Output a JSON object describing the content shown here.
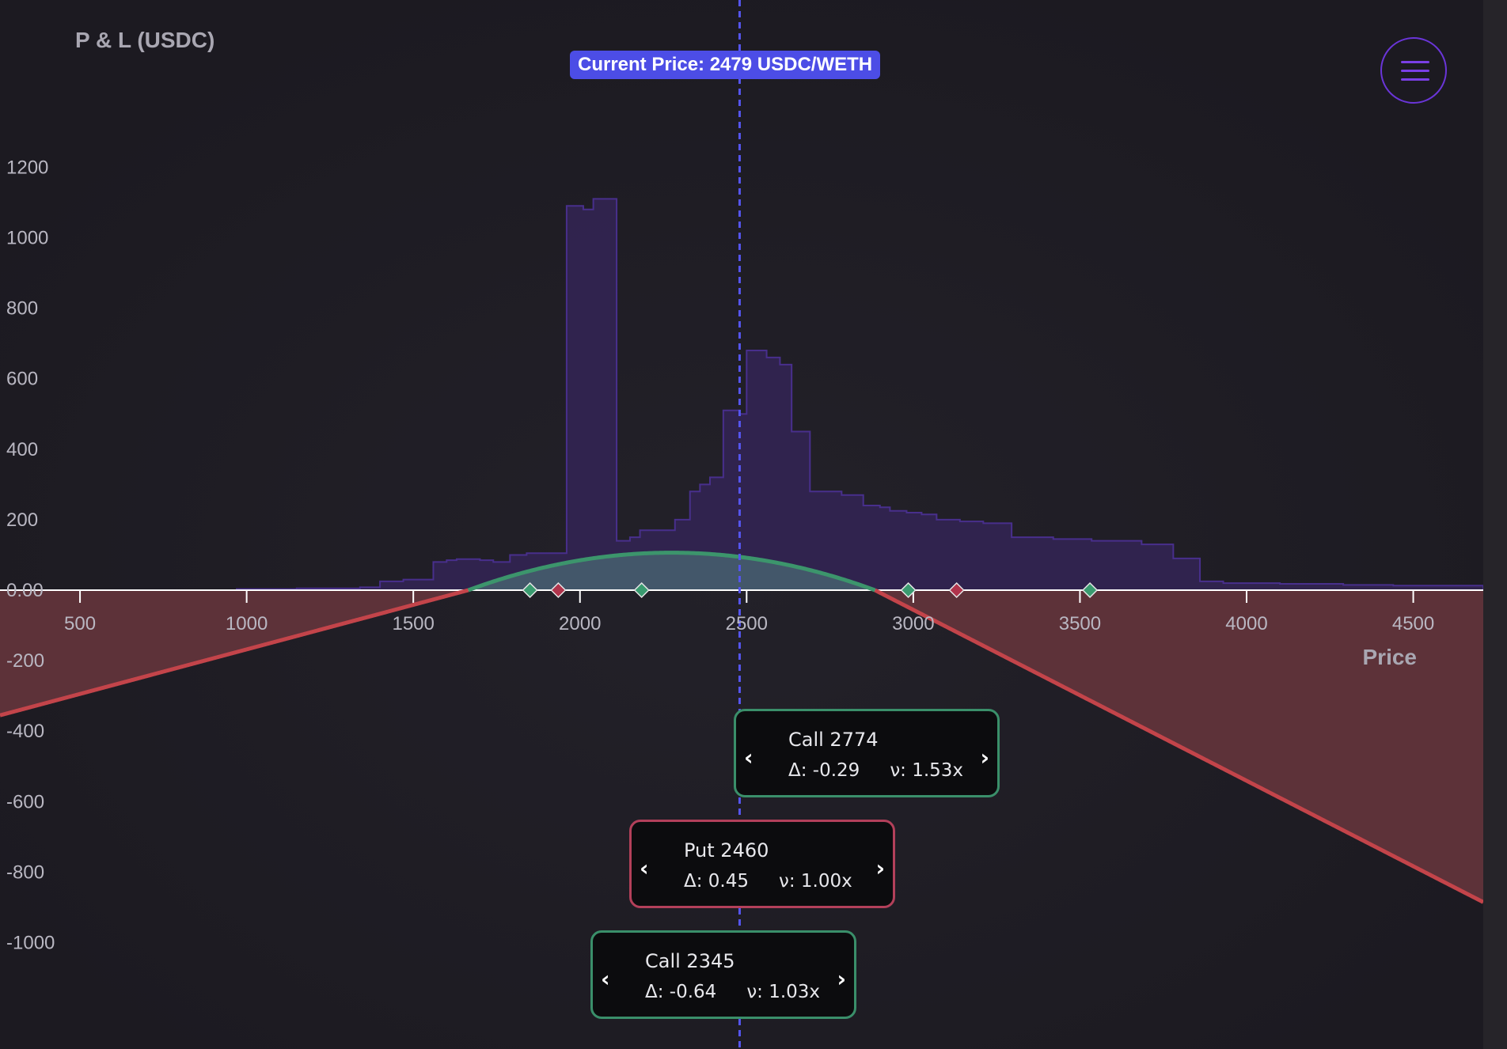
{
  "chart_data": {
    "type": "area",
    "title": "P & L (USDC)",
    "xlabel": "Price",
    "ylabel": "P & L (USDC)",
    "xlim": [
      260,
      4710
    ],
    "ylim": [
      -1000,
      1200
    ],
    "x_ticks": [
      500,
      1000,
      1500,
      2000,
      2500,
      3000,
      3500,
      4000,
      4500
    ],
    "y_ticks": [
      1200,
      1000,
      800,
      600,
      400,
      200,
      0,
      -200,
      -400,
      -600,
      -800,
      -1000
    ],
    "y_tick_labels": [
      "1200",
      "1000",
      "800",
      "600",
      "400",
      "200",
      "0.00",
      "-200",
      "-400",
      "-600",
      "-800",
      "-1000"
    ],
    "current_price": 2479,
    "current_price_label": "Current Price: 2479 USDC/WETH",
    "liquidity_histogram": {
      "steps": [
        [
          260,
          0
        ],
        [
          970,
          3
        ],
        [
          1150,
          5
        ],
        [
          1340,
          8
        ],
        [
          1400,
          25
        ],
        [
          1470,
          30
        ],
        [
          1560,
          80
        ],
        [
          1600,
          85
        ],
        [
          1630,
          88
        ],
        [
          1700,
          85
        ],
        [
          1740,
          80
        ],
        [
          1790,
          100
        ],
        [
          1840,
          105
        ],
        [
          1960,
          1090
        ],
        [
          2010,
          1080
        ],
        [
          2040,
          1110
        ],
        [
          2110,
          140
        ],
        [
          2150,
          150
        ],
        [
          2180,
          170
        ],
        [
          2285,
          200
        ],
        [
          2330,
          280
        ],
        [
          2360,
          300
        ],
        [
          2390,
          320
        ],
        [
          2430,
          510
        ],
        [
          2480,
          500
        ],
        [
          2500,
          680
        ],
        [
          2560,
          660
        ],
        [
          2600,
          640
        ],
        [
          2635,
          450
        ],
        [
          2690,
          280
        ],
        [
          2785,
          270
        ],
        [
          2850,
          240
        ],
        [
          2900,
          235
        ],
        [
          2930,
          225
        ],
        [
          2980,
          220
        ],
        [
          3025,
          215
        ],
        [
          3070,
          200
        ],
        [
          3140,
          195
        ],
        [
          3210,
          190
        ],
        [
          3295,
          150
        ],
        [
          3420,
          145
        ],
        [
          3535,
          140
        ],
        [
          3685,
          130
        ],
        [
          3780,
          90
        ],
        [
          3860,
          25
        ],
        [
          3930,
          20
        ],
        [
          4100,
          18
        ],
        [
          4290,
          15
        ],
        [
          4440,
          13
        ],
        [
          4710,
          13
        ]
      ]
    },
    "pnl_curve": {
      "peak_price": 2310,
      "peak_pnl": 106,
      "breakevens": [
        1665,
        2885
      ],
      "points": [
        [
          260,
          -355
        ],
        [
          1665,
          0
        ],
        [
          2310,
          106
        ],
        [
          2885,
          0
        ],
        [
          4710,
          -885
        ]
      ]
    },
    "markers": [
      {
        "price": 1850,
        "color": "#3a9b70"
      },
      {
        "price": 1935,
        "color": "#b0344c"
      },
      {
        "price": 2185,
        "color": "#3a9b70"
      },
      {
        "price": 2985,
        "color": "#3a9b70"
      },
      {
        "price": 3130,
        "color": "#b0344c"
      },
      {
        "price": 3530,
        "color": "#3a9b70"
      }
    ],
    "colors": {
      "histogram_fill": "#322451",
      "histogram_line": "#482f8c",
      "profit_fill": "#43576a",
      "profit_line": "#3c956c",
      "loss_fill": "#5d3239",
      "loss_line": "#c3444a",
      "current_price_line": "#5555ee",
      "zero_axis": "#ffffff"
    }
  },
  "tooltips": [
    {
      "id": "call-2774",
      "type": "call",
      "title": "Call 2774",
      "delta": "Δ: -0.29",
      "vega": "ν: 1.53x",
      "border": "#3a8f6a"
    },
    {
      "id": "put-2460",
      "type": "put",
      "title": "Put 2460",
      "delta": "Δ: 0.45",
      "vega": "ν: 1.00x",
      "border": "#b3405a"
    },
    {
      "id": "call-2345",
      "type": "call",
      "title": "Call 2345",
      "delta": "Δ: -0.64",
      "vega": "ν: 1.03x",
      "border": "#3a8f6a"
    }
  ],
  "nav": {
    "prev_glyph": "‹",
    "next_glyph": "›",
    "menu_icon": "hamburger-icon"
  }
}
